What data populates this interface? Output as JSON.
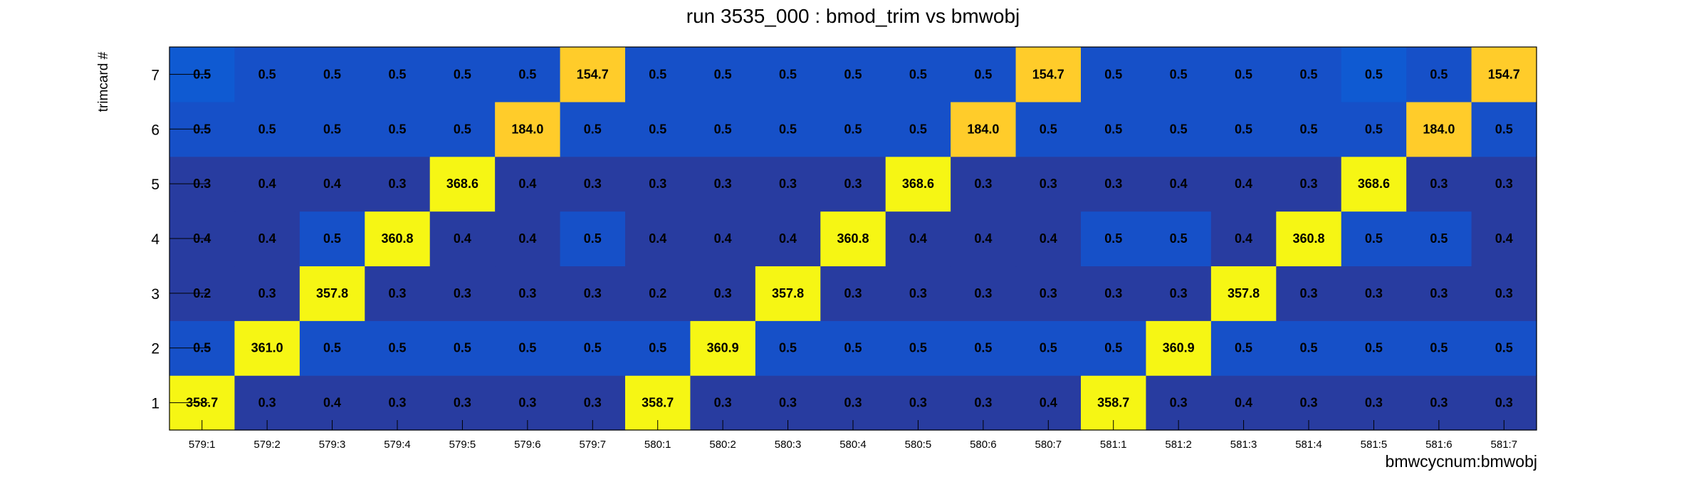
{
  "chart_data": {
    "type": "heatmap",
    "title": "run 3535_000 : bmod_trim vs bmwobj",
    "xlabel": "bmwcycnum:bmwobj",
    "ylabel": "trimcard #",
    "x_categories": [
      "579:1",
      "579:2",
      "579:3",
      "579:4",
      "579:5",
      "579:6",
      "579:7",
      "580:1",
      "580:2",
      "580:3",
      "580:4",
      "580:5",
      "580:6",
      "580:7",
      "581:1",
      "581:2",
      "581:3",
      "581:4",
      "581:5",
      "581:6",
      "581:7"
    ],
    "y_categories": [
      "1",
      "2",
      "3",
      "4",
      "5",
      "6",
      "7"
    ],
    "values": [
      [
        "358.7",
        "0.3",
        "0.4",
        "0.3",
        "0.3",
        "0.3",
        "0.3",
        "358.7",
        "0.3",
        "0.3",
        "0.3",
        "0.3",
        "0.3",
        "0.4",
        "358.7",
        "0.3",
        "0.4",
        "0.3",
        "0.3",
        "0.3",
        "0.3"
      ],
      [
        "0.5",
        "361.0",
        "0.5",
        "0.5",
        "0.5",
        "0.5",
        "0.5",
        "0.5",
        "360.9",
        "0.5",
        "0.5",
        "0.5",
        "0.5",
        "0.5",
        "0.5",
        "360.9",
        "0.5",
        "0.5",
        "0.5",
        "0.5",
        "0.5"
      ],
      [
        "0.2",
        "0.3",
        "357.8",
        "0.3",
        "0.3",
        "0.3",
        "0.3",
        "0.2",
        "0.3",
        "357.8",
        "0.3",
        "0.3",
        "0.3",
        "0.3",
        "0.3",
        "0.3",
        "357.8",
        "0.3",
        "0.3",
        "0.3",
        "0.3"
      ],
      [
        "0.4",
        "0.4",
        "0.5",
        "360.8",
        "0.4",
        "0.4",
        "0.5",
        "0.4",
        "0.4",
        "0.4",
        "360.8",
        "0.4",
        "0.4",
        "0.4",
        "0.5",
        "0.5",
        "0.4",
        "360.8",
        "0.5",
        "0.5",
        "0.4"
      ],
      [
        "0.3",
        "0.4",
        "0.4",
        "0.3",
        "368.6",
        "0.4",
        "0.3",
        "0.3",
        "0.3",
        "0.3",
        "0.3",
        "368.6",
        "0.3",
        "0.3",
        "0.3",
        "0.4",
        "0.4",
        "0.3",
        "368.6",
        "0.3",
        "0.3"
      ],
      [
        "0.5",
        "0.5",
        "0.5",
        "0.5",
        "0.5",
        "184.0",
        "0.5",
        "0.5",
        "0.5",
        "0.5",
        "0.5",
        "0.5",
        "184.0",
        "0.5",
        "0.5",
        "0.5",
        "0.5",
        "0.5",
        "0.5",
        "184.0",
        "0.5"
      ],
      [
        "0.5",
        "0.5",
        "0.5",
        "0.5",
        "0.5",
        "0.5",
        "154.7",
        "0.5",
        "0.5",
        "0.5",
        "0.5",
        "0.5",
        "0.5",
        "154.7",
        "0.5",
        "0.5",
        "0.5",
        "0.5",
        "0.5",
        "0.5",
        "154.7"
      ]
    ],
    "colors": {
      "cell_low": "#283ca0",
      "cell_mid": "#1650c8",
      "cell_alt": "#0f5ad2",
      "cell_high_a": "#f6f614",
      "cell_high_b": "#ffcc2a",
      "text": "#000000",
      "frame": "#000000"
    },
    "grid": false,
    "legend": "none"
  }
}
